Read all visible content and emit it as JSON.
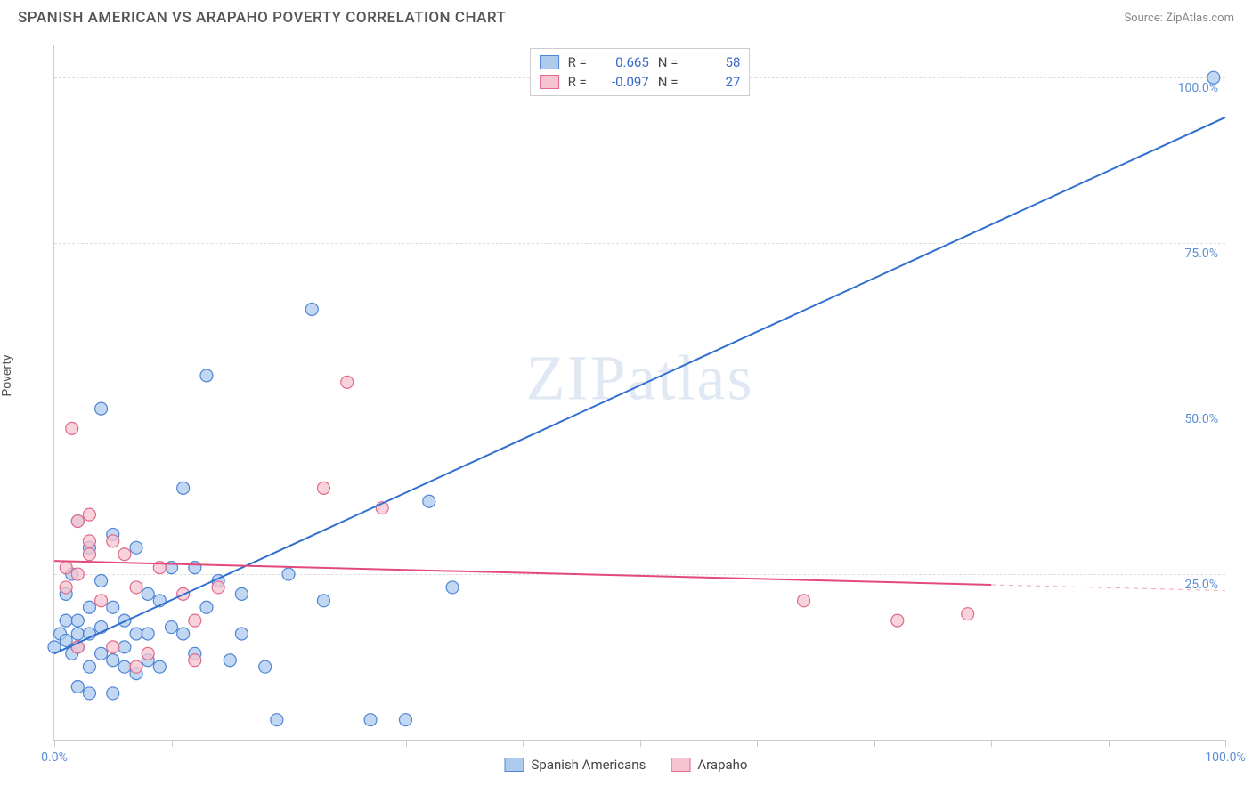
{
  "title": "SPANISH AMERICAN VS ARAPAHO POVERTY CORRELATION CHART",
  "source_label": "Source:",
  "source_name": "ZipAtlas.com",
  "ylabel": "Poverty",
  "watermark": "ZIPatlas",
  "chart": {
    "type": "scatter",
    "xlim": [
      0,
      100
    ],
    "ylim": [
      0,
      105
    ],
    "y_gridlines": [
      25,
      50,
      75,
      100
    ],
    "y_tick_labels": [
      "25.0%",
      "50.0%",
      "75.0%",
      "100.0%"
    ],
    "x_tick_positions": [
      0,
      10,
      20,
      30,
      40,
      50,
      60,
      70,
      80,
      90,
      100
    ],
    "x_axis_left_label": "0.0%",
    "x_axis_right_label": "100.0%",
    "background_color": "#ffffff",
    "grid_color": "#dddddd",
    "axis_color": "#cccccc",
    "marker_radius": 7,
    "marker_stroke_width": 1.2,
    "line_width": 2,
    "series": [
      {
        "name": "Spanish Americans",
        "fill": "#aecbee",
        "stroke": "#4f85d6",
        "line_color": "#2f6fd0",
        "r_value": "0.665",
        "n_value": "58",
        "trend": {
          "x1": 0,
          "y1": 13,
          "x2": 100,
          "y2": 94,
          "dash_after_x": null
        },
        "points": [
          [
            0,
            14
          ],
          [
            0.5,
            16
          ],
          [
            1,
            15
          ],
          [
            1,
            18
          ],
          [
            1,
            22
          ],
          [
            1.5,
            13
          ],
          [
            1.5,
            25
          ],
          [
            2,
            14
          ],
          [
            2,
            16
          ],
          [
            2,
            18
          ],
          [
            2,
            33
          ],
          [
            3,
            7
          ],
          [
            3,
            11
          ],
          [
            3,
            16
          ],
          [
            3,
            20
          ],
          [
            3,
            29
          ],
          [
            4,
            50
          ],
          [
            4,
            13
          ],
          [
            4,
            17
          ],
          [
            5,
            7
          ],
          [
            5,
            12
          ],
          [
            5,
            20
          ],
          [
            5,
            31
          ],
          [
            6,
            11
          ],
          [
            6,
            18
          ],
          [
            7,
            10
          ],
          [
            7,
            16
          ],
          [
            7,
            29
          ],
          [
            8,
            12
          ],
          [
            8,
            22
          ],
          [
            8,
            16
          ],
          [
            9,
            11
          ],
          [
            9,
            21
          ],
          [
            10,
            26
          ],
          [
            10,
            17
          ],
          [
            11,
            16
          ],
          [
            11,
            38
          ],
          [
            12,
            13
          ],
          [
            12,
            26
          ],
          [
            13,
            20
          ],
          [
            13,
            55
          ],
          [
            14,
            24
          ],
          [
            15,
            12
          ],
          [
            16,
            16
          ],
          [
            16,
            22
          ],
          [
            18,
            11
          ],
          [
            19,
            3
          ],
          [
            20,
            25
          ],
          [
            22,
            65
          ],
          [
            23,
            21
          ],
          [
            27,
            3
          ],
          [
            30,
            3
          ],
          [
            32,
            36
          ],
          [
            34,
            23
          ],
          [
            99,
            100
          ],
          [
            2,
            8
          ],
          [
            4,
            24
          ],
          [
            6,
            14
          ]
        ]
      },
      {
        "name": "Arapaho",
        "fill": "#f6c4d0",
        "stroke": "#e06a8b",
        "line_color": "#e24a7a",
        "r_value": "-0.097",
        "n_value": "27",
        "trend": {
          "x1": 0,
          "y1": 27,
          "x2": 100,
          "y2": 22.5,
          "dash_after_x": 80
        },
        "points": [
          [
            1,
            23
          ],
          [
            1,
            26
          ],
          [
            1.5,
            47
          ],
          [
            2,
            14
          ],
          [
            2,
            25
          ],
          [
            2,
            33
          ],
          [
            3,
            28
          ],
          [
            3,
            30
          ],
          [
            3,
            34
          ],
          [
            4,
            21
          ],
          [
            5,
            14
          ],
          [
            5,
            30
          ],
          [
            6,
            28
          ],
          [
            7,
            11
          ],
          [
            7,
            23
          ],
          [
            8,
            13
          ],
          [
            9,
            26
          ],
          [
            11,
            22
          ],
          [
            12,
            12
          ],
          [
            12,
            18
          ],
          [
            14,
            23
          ],
          [
            23,
            38
          ],
          [
            25,
            54
          ],
          [
            28,
            35
          ],
          [
            64,
            21
          ],
          [
            72,
            18
          ],
          [
            78,
            19
          ]
        ]
      }
    ]
  },
  "legend_top": {
    "r_label": "R =",
    "n_label": "N ="
  },
  "legend_bottom_items": [
    "Spanish Americans",
    "Arapaho"
  ]
}
